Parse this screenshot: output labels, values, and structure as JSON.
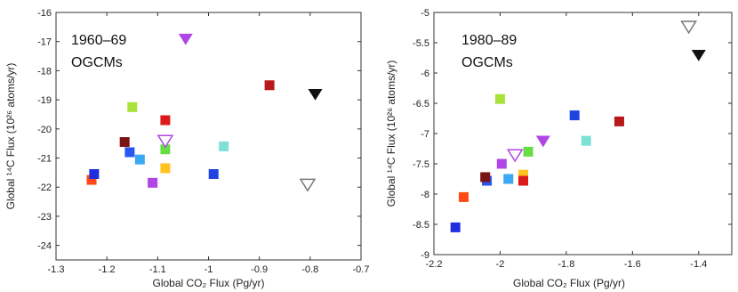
{
  "chart_data": [
    {
      "type": "scatter",
      "annotation_line1": "1960–69",
      "annotation_line2": "OGCMs",
      "xlabel": "Global CO₂ Flux (Pg/yr)",
      "ylabel": "Global ¹⁴C Flux (10²⁶ atoms/yr)",
      "xlim": [
        -1.3,
        -0.7
      ],
      "ylim": [
        -24.5,
        -16
      ],
      "xticks": [
        -1.3,
        -1.2,
        -1.1,
        -1.0,
        -0.9,
        -0.8,
        -0.7
      ],
      "xtick_labels": [
        "-1.3",
        "-1.2",
        "-1.1",
        "-1",
        "-0.9",
        "-0.8",
        "-0.7"
      ],
      "yticks": [
        -24,
        -23,
        -22,
        -21,
        -20,
        -19,
        -18,
        -17,
        -16
      ],
      "ytick_labels": [
        "-24",
        "-23",
        "-22",
        "-21",
        "-20",
        "-19",
        "-18",
        "-17",
        "-16"
      ],
      "grid": false,
      "points": [
        {
          "x": -1.23,
          "y": -21.75,
          "marker": "square",
          "color": "#ff4a14"
        },
        {
          "x": -1.225,
          "y": -21.55,
          "marker": "square",
          "color": "#1f2fe0"
        },
        {
          "x": -1.165,
          "y": -20.45,
          "marker": "square",
          "color": "#7a1414"
        },
        {
          "x": -1.155,
          "y": -20.8,
          "marker": "square",
          "color": "#2a55ee"
        },
        {
          "x": -1.15,
          "y": -19.25,
          "marker": "square",
          "color": "#a8e23a"
        },
        {
          "x": -1.135,
          "y": -21.05,
          "marker": "square",
          "color": "#3aa8f2"
        },
        {
          "x": -1.11,
          "y": -21.85,
          "marker": "square",
          "color": "#b046e6"
        },
        {
          "x": -1.085,
          "y": -19.7,
          "marker": "square",
          "color": "#dd1a1a"
        },
        {
          "x": -1.085,
          "y": -20.7,
          "marker": "square",
          "color": "#66dd44"
        },
        {
          "x": -1.085,
          "y": -21.35,
          "marker": "square",
          "color": "#ffc21f"
        },
        {
          "x": -1.085,
          "y": -20.4,
          "marker": "triangle-open",
          "color": "#b046e6"
        },
        {
          "x": -1.045,
          "y": -16.9,
          "marker": "triangle",
          "color": "#b046e6"
        },
        {
          "x": -0.99,
          "y": -21.55,
          "marker": "square",
          "color": "#1f44e0"
        },
        {
          "x": -0.97,
          "y": -20.6,
          "marker": "square",
          "color": "#7fe0d8"
        },
        {
          "x": -0.88,
          "y": -18.5,
          "marker": "square",
          "color": "#b81a1a"
        },
        {
          "x": -0.79,
          "y": -18.8,
          "marker": "triangle",
          "color": "#111111"
        },
        {
          "x": -0.805,
          "y": -21.9,
          "marker": "triangle-open",
          "color": "#777777"
        }
      ]
    },
    {
      "type": "scatter",
      "annotation_line1": "1980–89",
      "annotation_line2": "OGCMs",
      "xlabel": "Global CO₂ Flux (Pg/yr)",
      "ylabel": "Global ¹⁴C Flux (10²⁶ atoms/yr)",
      "xlim": [
        -2.2,
        -1.3
      ],
      "ylim": [
        -9,
        -5
      ],
      "xticks": [
        -2.2,
        -2.0,
        -1.8,
        -1.6,
        -1.4
      ],
      "xtick_labels": [
        "-2.2",
        "-2",
        "-1.8",
        "-1.6",
        "-1.4"
      ],
      "yticks": [
        -9,
        -8.5,
        -8,
        -7.5,
        -7,
        -6.5,
        -6,
        -5.5,
        -5
      ],
      "ytick_labels": [
        "-9",
        "-8.5",
        "-8",
        "-7.5",
        "-7",
        "-6.5",
        "-6",
        "-5.5",
        "-5"
      ],
      "grid": false,
      "points": [
        {
          "x": -2.135,
          "y": -8.55,
          "marker": "square",
          "color": "#1f2fe0"
        },
        {
          "x": -2.11,
          "y": -8.05,
          "marker": "square",
          "color": "#ff4a14"
        },
        {
          "x": -2.04,
          "y": -7.78,
          "marker": "square",
          "color": "#2a55ee"
        },
        {
          "x": -2.045,
          "y": -7.72,
          "marker": "square",
          "color": "#7a1414"
        },
        {
          "x": -2.0,
          "y": -6.43,
          "marker": "square",
          "color": "#a8e23a"
        },
        {
          "x": -1.995,
          "y": -7.5,
          "marker": "square",
          "color": "#b046e6"
        },
        {
          "x": -1.975,
          "y": -7.75,
          "marker": "square",
          "color": "#3aa8f2"
        },
        {
          "x": -1.955,
          "y": -7.35,
          "marker": "triangle-open",
          "color": "#b046e6"
        },
        {
          "x": -1.93,
          "y": -7.68,
          "marker": "square",
          "color": "#ffc21f"
        },
        {
          "x": -1.93,
          "y": -7.78,
          "marker": "square",
          "color": "#dd1a1a"
        },
        {
          "x": -1.915,
          "y": -7.3,
          "marker": "square",
          "color": "#66dd44"
        },
        {
          "x": -1.87,
          "y": -7.12,
          "marker": "triangle",
          "color": "#b046e6"
        },
        {
          "x": -1.775,
          "y": -6.7,
          "marker": "square",
          "color": "#1f44e0"
        },
        {
          "x": -1.74,
          "y": -7.12,
          "marker": "square",
          "color": "#7fe0d8"
        },
        {
          "x": -1.64,
          "y": -6.8,
          "marker": "square",
          "color": "#b81a1a"
        },
        {
          "x": -1.43,
          "y": -5.23,
          "marker": "triangle-open",
          "color": "#777777"
        },
        {
          "x": -1.4,
          "y": -5.7,
          "marker": "triangle",
          "color": "#111111"
        }
      ]
    }
  ]
}
